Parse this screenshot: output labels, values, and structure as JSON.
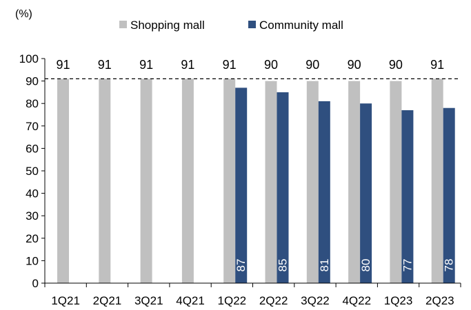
{
  "chart_data": {
    "type": "bar",
    "unit_label": "(%)",
    "categories": [
      "1Q21",
      "2Q21",
      "3Q21",
      "4Q21",
      "1Q22",
      "2Q22",
      "3Q22",
      "4Q22",
      "1Q23",
      "2Q23"
    ],
    "series": [
      {
        "name": "Shopping mall",
        "color": "#c0c0c0",
        "values": [
          91,
          91,
          91,
          91,
          91,
          90,
          90,
          90,
          90,
          91
        ]
      },
      {
        "name": "Community mall",
        "color": "#2f4f7f",
        "values": [
          null,
          null,
          null,
          null,
          87,
          85,
          81,
          80,
          77,
          78
        ]
      }
    ],
    "ylim": [
      0,
      100
    ],
    "yticks": [
      0,
      10,
      20,
      30,
      40,
      50,
      60,
      70,
      80,
      90,
      100
    ],
    "reference_line": {
      "value": 91,
      "style": "dashed"
    },
    "legend_position": "top-center",
    "grid": false,
    "title": "",
    "xlabel": "",
    "ylabel": ""
  }
}
